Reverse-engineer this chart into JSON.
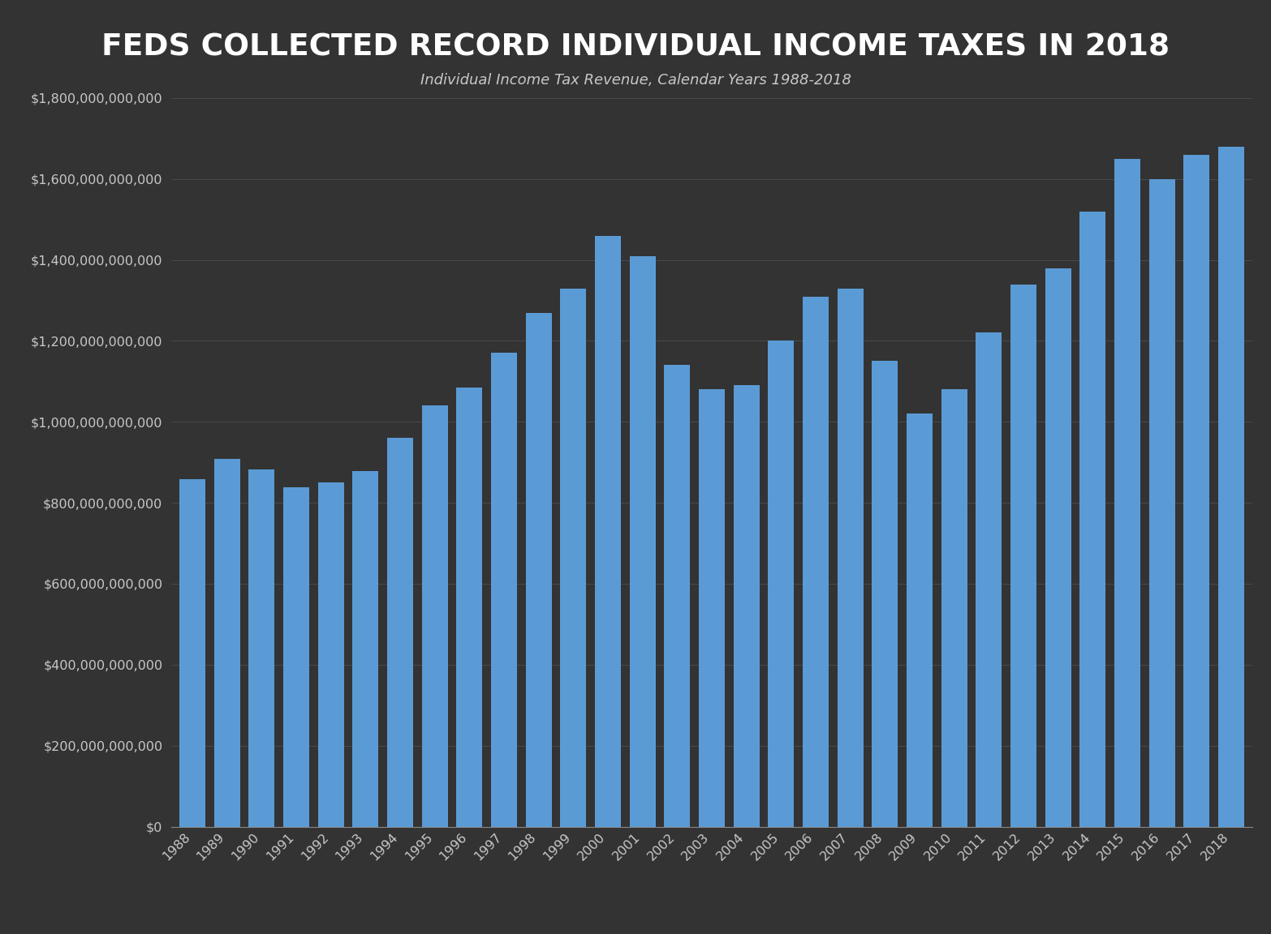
{
  "title": "FEDS COLLECTED RECORD INDIVIDUAL INCOME TAXES IN 2018",
  "subtitle": "Individual Income Tax Revenue, Calendar Years 1988-2018",
  "years": [
    1988,
    1989,
    1990,
    1991,
    1992,
    1993,
    1994,
    1995,
    1996,
    1997,
    1998,
    1999,
    2000,
    2001,
    2002,
    2003,
    2004,
    2005,
    2006,
    2007,
    2008,
    2009,
    2010,
    2011,
    2012,
    2013,
    2014,
    2015,
    2016,
    2017,
    2018
  ],
  "values": [
    858000000000,
    909000000000,
    882000000000,
    839000000000,
    850000000000,
    879000000000,
    960000000000,
    1040000000000,
    1085000000000,
    1170000000000,
    1270000000000,
    1330000000000,
    1460000000000,
    1410000000000,
    1140000000000,
    1080000000000,
    1090000000000,
    1200000000000,
    1310000000000,
    1330000000000,
    1150000000000,
    1020000000000,
    1080000000000,
    1220000000000,
    1340000000000,
    1380000000000,
    1520000000000,
    1650000000000,
    1600000000000,
    1660000000000,
    1680000000000
  ],
  "bar_color": "#5b9bd5",
  "background_color": "#333333",
  "text_color": "#c8c8c8",
  "title_color": "#ffffff",
  "grid_color": "#4a4a4a",
  "ylim": [
    0,
    1800000000000
  ],
  "ytick_step": 200000000000,
  "bar_width": 0.75
}
